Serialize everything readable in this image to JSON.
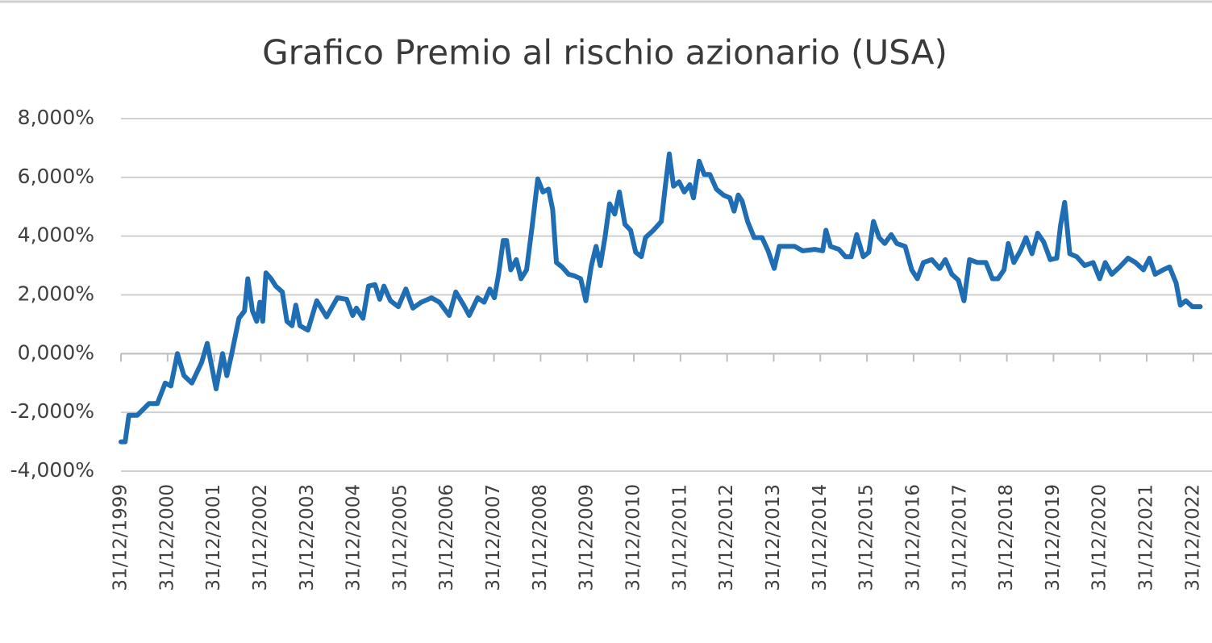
{
  "chart_data": {
    "type": "line",
    "title": "Grafico Premio al rischio azionario (USA)",
    "color": "#1f6db3",
    "grid": true,
    "xlim": [
      2000,
      2023.4
    ],
    "xticks": [
      {
        "value": 2000,
        "label": "31/12/1999"
      },
      {
        "value": 2001,
        "label": "31/12/2000"
      },
      {
        "value": 2002,
        "label": "31/12/2001"
      },
      {
        "value": 2003,
        "label": "31/12/2002"
      },
      {
        "value": 2004,
        "label": "31/12/2003"
      },
      {
        "value": 2005,
        "label": "31/12/2004"
      },
      {
        "value": 2006,
        "label": "31/12/2005"
      },
      {
        "value": 2007,
        "label": "31/12/2006"
      },
      {
        "value": 2008,
        "label": "31/12/2007"
      },
      {
        "value": 2009,
        "label": "31/12/2008"
      },
      {
        "value": 2010,
        "label": "31/12/2009"
      },
      {
        "value": 2011,
        "label": "31/12/2010"
      },
      {
        "value": 2012,
        "label": "31/12/2011"
      },
      {
        "value": 2013,
        "label": "31/12/2012"
      },
      {
        "value": 2014,
        "label": "31/12/2013"
      },
      {
        "value": 2015,
        "label": "31/12/2014"
      },
      {
        "value": 2016,
        "label": "31/12/2015"
      },
      {
        "value": 2017,
        "label": "31/12/2016"
      },
      {
        "value": 2018,
        "label": "31/12/2017"
      },
      {
        "value": 2019,
        "label": "31/12/2018"
      },
      {
        "value": 2020,
        "label": "31/12/2019"
      },
      {
        "value": 2021,
        "label": "31/12/2020"
      },
      {
        "value": 2022,
        "label": "31/12/2021"
      },
      {
        "value": 2023,
        "label": "31/12/2022"
      }
    ],
    "ylim": [
      -4,
      8
    ],
    "yticks": [
      {
        "value": -4,
        "label": "-4,000%"
      },
      {
        "value": -2,
        "label": "-2,000%"
      },
      {
        "value": 0,
        "label": "0,000%"
      },
      {
        "value": 2,
        "label": "2,000%"
      },
      {
        "value": 4,
        "label": "4,000%"
      },
      {
        "value": 6,
        "label": "6,000%"
      },
      {
        "value": 8,
        "label": "8,000%"
      }
    ],
    "x": [
      2000.0,
      2000.09,
      2000.17,
      2000.35,
      2000.6,
      2000.78,
      2000.95,
      2001.07,
      2001.21,
      2001.35,
      2001.52,
      2001.73,
      2001.85,
      2002.04,
      2002.18,
      2002.27,
      2002.37,
      2002.53,
      2002.65,
      2002.72,
      2002.82,
      2002.91,
      2002.98,
      2003.04,
      2003.11,
      2003.22,
      2003.32,
      2003.46,
      2003.56,
      2003.67,
      2003.75,
      2003.84,
      2004.01,
      2004.2,
      2004.41,
      2004.64,
      2004.84,
      2004.97,
      2005.05,
      2005.19,
      2005.31,
      2005.45,
      2005.55,
      2005.64,
      2005.78,
      2005.95,
      2006.11,
      2006.26,
      2006.44,
      2006.66,
      2006.83,
      2007.04,
      2007.18,
      2007.35,
      2007.47,
      2007.65,
      2007.79,
      2007.91,
      2008.01,
      2008.1,
      2008.2,
      2008.27,
      2008.36,
      2008.48,
      2008.58,
      2008.7,
      2008.82,
      2008.94,
      2009.05,
      2009.17,
      2009.26,
      2009.34,
      2009.46,
      2009.6,
      2009.72,
      2009.86,
      2009.97,
      2010.09,
      2010.19,
      2010.28,
      2010.38,
      2010.48,
      2010.59,
      2010.69,
      2010.81,
      2010.93,
      2011.04,
      2011.16,
      2011.25,
      2011.42,
      2011.59,
      2011.68,
      2011.76,
      2011.85,
      2011.97,
      2012.08,
      2012.2,
      2012.28,
      2012.4,
      2012.51,
      2012.63,
      2012.77,
      2012.92,
      2013.06,
      2013.15,
      2013.24,
      2013.32,
      2013.44,
      2013.58,
      2013.75,
      2013.88,
      2014.01,
      2014.12,
      2014.27,
      2014.45,
      2014.62,
      2014.88,
      2015.05,
      2015.12,
      2015.22,
      2015.4,
      2015.54,
      2015.66,
      2015.78,
      2015.92,
      2016.04,
      2016.14,
      2016.26,
      2016.38,
      2016.52,
      2016.64,
      2016.82,
      2016.96,
      2017.08,
      2017.21,
      2017.39,
      2017.56,
      2017.68,
      2017.82,
      2017.96,
      2018.08,
      2018.2,
      2018.37,
      2018.55,
      2018.69,
      2018.81,
      2018.94,
      2019.03,
      2019.15,
      2019.29,
      2019.41,
      2019.54,
      2019.66,
      2019.79,
      2019.93,
      2020.07,
      2020.15,
      2020.24,
      2020.35,
      2020.5,
      2020.67,
      2020.85,
      2020.99,
      2021.11,
      2021.25,
      2021.42,
      2021.6,
      2021.76,
      2021.93,
      2022.06,
      2022.18,
      2022.35,
      2022.49,
      2022.63,
      2022.72,
      2022.84,
      2022.98,
      2023.15
    ],
    "values": [
      -3.0,
      -3.0,
      -2.1,
      -2.1,
      -1.7,
      -1.7,
      -1.0,
      -1.1,
      0.0,
      -0.75,
      -1.0,
      -0.3,
      0.35,
      -1.2,
      0.0,
      -0.75,
      -0.05,
      1.2,
      1.45,
      2.55,
      1.45,
      1.1,
      1.75,
      1.1,
      2.75,
      2.55,
      2.3,
      2.1,
      1.1,
      0.95,
      1.65,
      0.95,
      0.8,
      1.8,
      1.25,
      1.9,
      1.85,
      1.3,
      1.55,
      1.2,
      2.3,
      2.35,
      1.85,
      2.3,
      1.8,
      1.6,
      2.2,
      1.55,
      1.75,
      1.9,
      1.75,
      1.3,
      2.1,
      1.65,
      1.3,
      1.9,
      1.75,
      2.2,
      1.9,
      2.7,
      3.85,
      3.85,
      2.85,
      3.2,
      2.55,
      2.85,
      4.35,
      5.95,
      5.5,
      5.6,
      4.9,
      3.1,
      2.95,
      2.7,
      2.65,
      2.55,
      1.8,
      3.0,
      3.65,
      3.0,
      3.95,
      5.1,
      4.75,
      5.5,
      4.4,
      4.2,
      3.45,
      3.3,
      3.95,
      4.2,
      4.5,
      5.75,
      6.8,
      5.7,
      5.85,
      5.5,
      5.75,
      5.3,
      6.55,
      6.1,
      6.1,
      5.6,
      5.4,
      5.3,
      4.85,
      5.4,
      5.2,
      4.5,
      3.95,
      3.95,
      3.5,
      2.9,
      3.65,
      3.65,
      3.65,
      3.5,
      3.55,
      3.5,
      4.2,
      3.65,
      3.55,
      3.3,
      3.3,
      4.05,
      3.3,
      3.45,
      4.5,
      3.95,
      3.75,
      4.05,
      3.75,
      3.65,
      2.85,
      2.55,
      3.1,
      3.2,
      2.9,
      3.2,
      2.7,
      2.5,
      1.8,
      3.2,
      3.1,
      3.1,
      2.55,
      2.55,
      2.85,
      3.75,
      3.1,
      3.5,
      3.95,
      3.4,
      4.1,
      3.8,
      3.2,
      3.25,
      4.35,
      5.15,
      3.4,
      3.3,
      3.0,
      3.1,
      2.55,
      3.1,
      2.7,
      2.95,
      3.25,
      3.1,
      2.85,
      3.25,
      2.7,
      2.85,
      2.95,
      2.4,
      1.65,
      1.8,
      1.6,
      1.6
    ]
  }
}
